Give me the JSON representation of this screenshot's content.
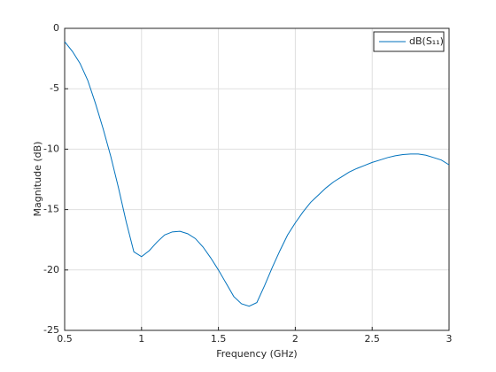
{
  "chart_data": {
    "type": "line",
    "xlabel": "Frequency (GHz)",
    "ylabel": "Magnitude (dB)",
    "x": [
      0.5,
      0.55,
      0.6,
      0.65,
      0.7,
      0.75,
      0.8,
      0.85,
      0.9,
      0.95,
      1.0,
      1.05,
      1.1,
      1.15,
      1.2,
      1.25,
      1.3,
      1.35,
      1.4,
      1.45,
      1.5,
      1.55,
      1.6,
      1.65,
      1.7,
      1.75,
      1.8,
      1.85,
      1.9,
      1.95,
      2.0,
      2.05,
      2.1,
      2.15,
      2.2,
      2.25,
      2.3,
      2.35,
      2.4,
      2.45,
      2.5,
      2.55,
      2.6,
      2.65,
      2.7,
      2.75,
      2.8,
      2.85,
      2.9,
      2.95,
      3.0
    ],
    "series": [
      {
        "name": "dB(S₁₁)",
        "color": "#0072bd",
        "values": [
          -1.1,
          -1.9,
          -2.9,
          -4.3,
          -6.2,
          -8.3,
          -10.6,
          -13.2,
          -16.0,
          -18.5,
          -18.9,
          -18.4,
          -17.7,
          -17.1,
          -16.85,
          -16.8,
          -17.0,
          -17.4,
          -18.1,
          -19.0,
          -20.0,
          -21.1,
          -22.2,
          -22.8,
          -23.0,
          -22.7,
          -21.3,
          -19.8,
          -18.4,
          -17.1,
          -16.1,
          -15.2,
          -14.4,
          -13.8,
          -13.2,
          -12.7,
          -12.3,
          -11.9,
          -11.6,
          -11.35,
          -11.1,
          -10.9,
          -10.7,
          -10.55,
          -10.45,
          -10.4,
          -10.4,
          -10.5,
          -10.7,
          -10.9,
          -11.3
        ]
      }
    ],
    "xlim": [
      0.5,
      3
    ],
    "xticks": [
      0.5,
      1,
      1.5,
      2,
      2.5,
      3
    ],
    "ylim": [
      -25,
      0
    ],
    "yticks": [
      -25,
      -20,
      -15,
      -10,
      -5,
      0
    ],
    "grid": true,
    "legend": "northeast"
  }
}
